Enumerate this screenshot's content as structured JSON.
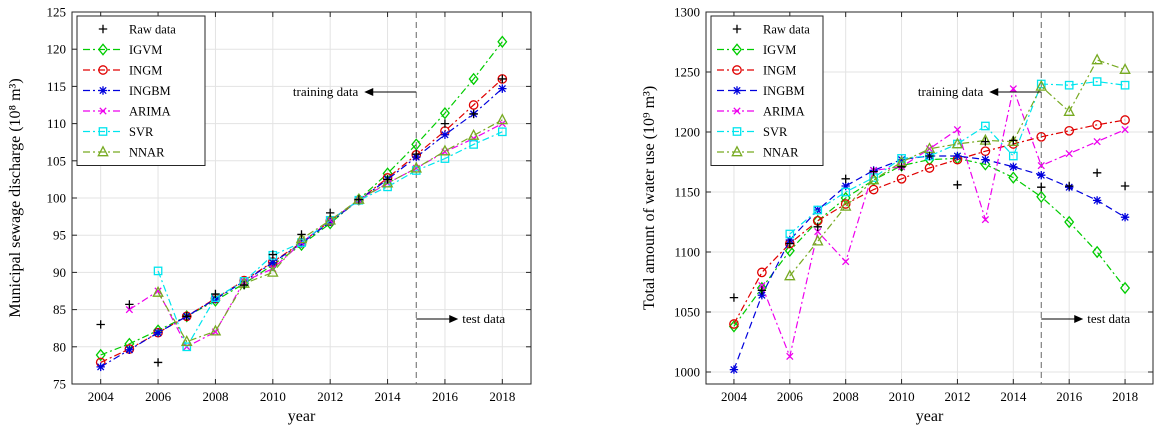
{
  "chart_data": [
    {
      "type": "line",
      "xlabel": "year",
      "ylabel": "Municipal sewage discharge (10⁸ m³)",
      "xlim": [
        2003,
        2019
      ],
      "ylim": [
        75,
        125
      ],
      "xticks": [
        2004,
        2006,
        2008,
        2010,
        2012,
        2014,
        2016,
        2018
      ],
      "yticks": [
        75,
        80,
        85,
        90,
        95,
        100,
        105,
        110,
        115,
        120,
        125
      ],
      "grid": true,
      "legend_position": "top-left",
      "split_year": 2015,
      "annotations": {
        "training": "training data",
        "test": "test data"
      },
      "raw": {
        "name": "Raw data",
        "x": [
          2004,
          2005,
          2006,
          2007,
          2008,
          2009,
          2010,
          2011,
          2012,
          2013,
          2014,
          2015,
          2016,
          2017,
          2018
        ],
        "y": [
          83.0,
          85.7,
          77.9,
          84.1,
          87.1,
          88.3,
          92.4,
          95.1,
          98.0,
          99.8,
          102.5,
          105.9,
          110.0,
          111.3,
          116.0
        ]
      },
      "series": [
        {
          "name": "IGVM",
          "color": "#00cc00",
          "marker": "diamond",
          "dash": "dashdot",
          "x": [
            2004,
            2005,
            2006,
            2007,
            2008,
            2009,
            2010,
            2011,
            2012,
            2013,
            2014,
            2015,
            2016,
            2017,
            2018
          ],
          "y": [
            78.9,
            80.4,
            82.2,
            84.1,
            86.2,
            88.5,
            91.0,
            93.7,
            96.6,
            99.8,
            103.3,
            107.2,
            111.4,
            116.0,
            121.0
          ]
        },
        {
          "name": "INGM",
          "color": "#e00000",
          "marker": "circle",
          "dash": "dashdot",
          "x": [
            2004,
            2005,
            2006,
            2007,
            2008,
            2009,
            2010,
            2011,
            2012,
            2013,
            2014,
            2015,
            2016,
            2017,
            2018
          ],
          "y": [
            77.9,
            79.7,
            81.9,
            84.1,
            86.5,
            88.9,
            91.4,
            94.0,
            96.9,
            99.7,
            102.7,
            105.8,
            109.0,
            112.5,
            116.0
          ]
        },
        {
          "name": "INGBM",
          "color": "#0000dd",
          "marker": "asterisk",
          "dash": "dashdot",
          "x": [
            2004,
            2005,
            2006,
            2007,
            2008,
            2009,
            2010,
            2011,
            2012,
            2013,
            2014,
            2015,
            2016,
            2017,
            2018
          ],
          "y": [
            77.3,
            79.6,
            81.9,
            84.1,
            86.4,
            88.8,
            91.3,
            93.9,
            96.8,
            99.7,
            102.5,
            105.5,
            108.5,
            111.3,
            114.7
          ]
        },
        {
          "name": "ARIMA",
          "color": "#ee00ee",
          "marker": "x",
          "dash": "dashdot",
          "x": [
            2005,
            2006,
            2007,
            2008,
            2009,
            2010,
            2011,
            2012,
            2013,
            2014,
            2015,
            2016,
            2017,
            2018
          ],
          "y": [
            85.0,
            87.5,
            80.0,
            82.0,
            88.8,
            90.5,
            94.0,
            97.0,
            99.7,
            102.0,
            104.0,
            106.2,
            108.0,
            110.0
          ]
        },
        {
          "name": "SVR",
          "color": "#00e5ee",
          "marker": "square",
          "dash": "dashdot",
          "x": [
            2006,
            2007,
            2008,
            2009,
            2010,
            2011,
            2012,
            2013,
            2014,
            2015,
            2016,
            2017,
            2018
          ],
          "y": [
            90.2,
            80.0,
            86.6,
            88.8,
            92.3,
            94.0,
            97.0,
            99.7,
            101.5,
            103.7,
            105.3,
            107.2,
            108.9
          ]
        },
        {
          "name": "NNAR",
          "color": "#77aa22",
          "marker": "triangle",
          "dash": "dashdot",
          "x": [
            2006,
            2007,
            2008,
            2009,
            2010,
            2011,
            2012,
            2013,
            2014,
            2015,
            2016,
            2017,
            2018
          ],
          "y": [
            87.3,
            80.7,
            82.1,
            88.5,
            90.0,
            94.5,
            97.0,
            99.8,
            102.0,
            104.0,
            106.3,
            108.4,
            110.5
          ]
        }
      ]
    },
    {
      "type": "line",
      "xlabel": "year",
      "ylabel": "Total amount of water use (10⁹ m³)",
      "xlim": [
        2003,
        2019
      ],
      "ylim": [
        990,
        1300
      ],
      "xticks": [
        2004,
        2006,
        2008,
        2010,
        2012,
        2014,
        2016,
        2018
      ],
      "yticks": [
        1000,
        1050,
        1100,
        1150,
        1200,
        1250,
        1300
      ],
      "grid": true,
      "legend_position": "top-left",
      "split_year": 2015,
      "annotations": {
        "training": "training data",
        "test": "test data"
      },
      "raw": {
        "name": "Raw data",
        "x": [
          2004,
          2005,
          2006,
          2007,
          2008,
          2009,
          2010,
          2011,
          2012,
          2013,
          2014,
          2015,
          2016,
          2017,
          2018
        ],
        "y": [
          1062,
          1068,
          1107,
          1121,
          1161,
          1167,
          1171,
          1180,
          1156,
          1192,
          1193,
          1154,
          1155,
          1166,
          1155
        ]
      },
      "series": [
        {
          "name": "IGVM",
          "color": "#00cc00",
          "marker": "diamond",
          "dash": "dashdot",
          "x": [
            2004,
            2005,
            2006,
            2007,
            2008,
            2009,
            2010,
            2011,
            2012,
            2013,
            2014,
            2015,
            2016,
            2017,
            2018
          ],
          "y": [
            1038,
            1070,
            1101,
            1126,
            1145,
            1160,
            1172,
            1177,
            1178,
            1173,
            1162,
            1146,
            1125,
            1100,
            1070
          ]
        },
        {
          "name": "INGM",
          "color": "#e00000",
          "marker": "circle",
          "dash": "dashdot",
          "x": [
            2004,
            2005,
            2006,
            2007,
            2008,
            2009,
            2010,
            2011,
            2012,
            2013,
            2014,
            2015,
            2016,
            2017,
            2018
          ],
          "y": [
            1040,
            1083,
            1107,
            1126,
            1140,
            1152,
            1161,
            1170,
            1177,
            1184,
            1190,
            1196,
            1201,
            1206,
            1210
          ]
        },
        {
          "name": "INGBM",
          "color": "#0000dd",
          "marker": "asterisk",
          "dash": "dashed",
          "x": [
            2004,
            2005,
            2006,
            2007,
            2008,
            2009,
            2010,
            2011,
            2012,
            2013,
            2014,
            2015,
            2016,
            2017,
            2018
          ],
          "y": [
            1002,
            1064,
            1110,
            1135,
            1155,
            1168,
            1177,
            1180,
            1180,
            1177,
            1171,
            1164,
            1154,
            1143,
            1129
          ]
        },
        {
          "name": "ARIMA",
          "color": "#ee00ee",
          "marker": "x",
          "dash": "dashdot",
          "x": [
            2005,
            2006,
            2007,
            2008,
            2009,
            2010,
            2011,
            2012,
            2013,
            2014,
            2015,
            2016,
            2017,
            2018
          ],
          "y": [
            1072,
            1013,
            1117,
            1092,
            1168,
            1171,
            1186,
            1202,
            1127,
            1236,
            1172,
            1182,
            1192,
            1202
          ]
        },
        {
          "name": "SVR",
          "color": "#00e5ee",
          "marker": "square",
          "dash": "dashdot",
          "x": [
            2006,
            2007,
            2008,
            2009,
            2010,
            2011,
            2012,
            2013,
            2014,
            2015,
            2016,
            2017,
            2018
          ],
          "y": [
            1115,
            1135,
            1150,
            1162,
            1178,
            1180,
            1190,
            1205,
            1180,
            1240,
            1239,
            1242,
            1239
          ]
        },
        {
          "name": "NNAR",
          "color": "#77aa22",
          "marker": "triangle",
          "dash": "dashdot",
          "x": [
            2006,
            2007,
            2008,
            2009,
            2010,
            2011,
            2012,
            2013,
            2014,
            2015,
            2016,
            2017,
            2018
          ],
          "y": [
            1080,
            1109,
            1138,
            1160,
            1175,
            1186,
            1190,
            1193,
            1192,
            1238,
            1217,
            1260,
            1252
          ]
        }
      ]
    }
  ]
}
